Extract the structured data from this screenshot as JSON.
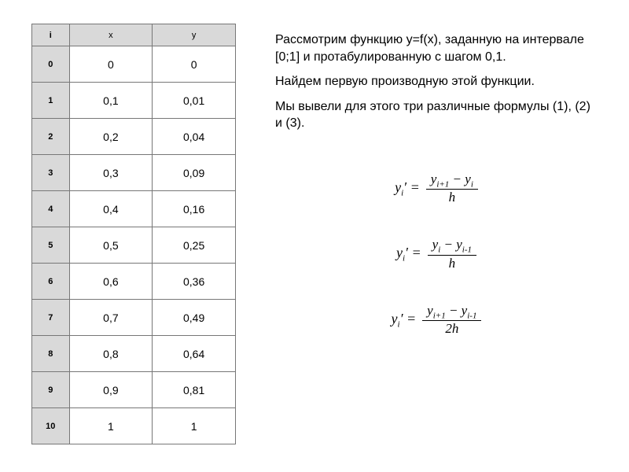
{
  "table": {
    "headers": {
      "i": "i",
      "x": "x",
      "y": "y"
    },
    "header_bg": "#d9d9d9",
    "border_color": "#777777",
    "cell_fontsize": 14,
    "header_fontsize": 11,
    "rows": [
      {
        "i": "0",
        "x": "0",
        "y": "0"
      },
      {
        "i": "1",
        "x": "0,1",
        "y": "0,01"
      },
      {
        "i": "2",
        "x": "0,2",
        "y": "0,04"
      },
      {
        "i": "3",
        "x": "0,3",
        "y": "0,09"
      },
      {
        "i": "4",
        "x": "0,4",
        "y": "0,16"
      },
      {
        "i": "5",
        "x": "0,5",
        "y": "0,25"
      },
      {
        "i": "6",
        "x": "0,6",
        "y": "0,36"
      },
      {
        "i": "7",
        "x": "0,7",
        "y": "0,49"
      },
      {
        "i": "8",
        "x": "0,8",
        "y": "0,64"
      },
      {
        "i": "9",
        "x": "0,9",
        "y": "0,81"
      },
      {
        "i": "10",
        "x": "1",
        "y": "1"
      }
    ]
  },
  "text": {
    "p1": "Рассмотрим функцию y=f(x), заданную на интервале [0;1] и протабулированную с шагом 0,1.",
    "p2": "Найдем первую производную этой функции.",
    "p3": "Мы вывели для этого три различные формулы (1), (2) и (3)."
  },
  "formulas": {
    "f1": {
      "lhs_sub": "i",
      "num_a_sub": "i+1",
      "num_b_sub": "i",
      "den": "h"
    },
    "f2": {
      "lhs_sub": "i",
      "num_a_sub": "i",
      "num_b_sub": "i-1",
      "den": "h"
    },
    "f3": {
      "lhs_sub": "i",
      "num_a_sub": "i+1",
      "num_b_sub": "i-1",
      "den": "2h"
    }
  },
  "colors": {
    "background": "#ffffff",
    "text": "#000000"
  }
}
